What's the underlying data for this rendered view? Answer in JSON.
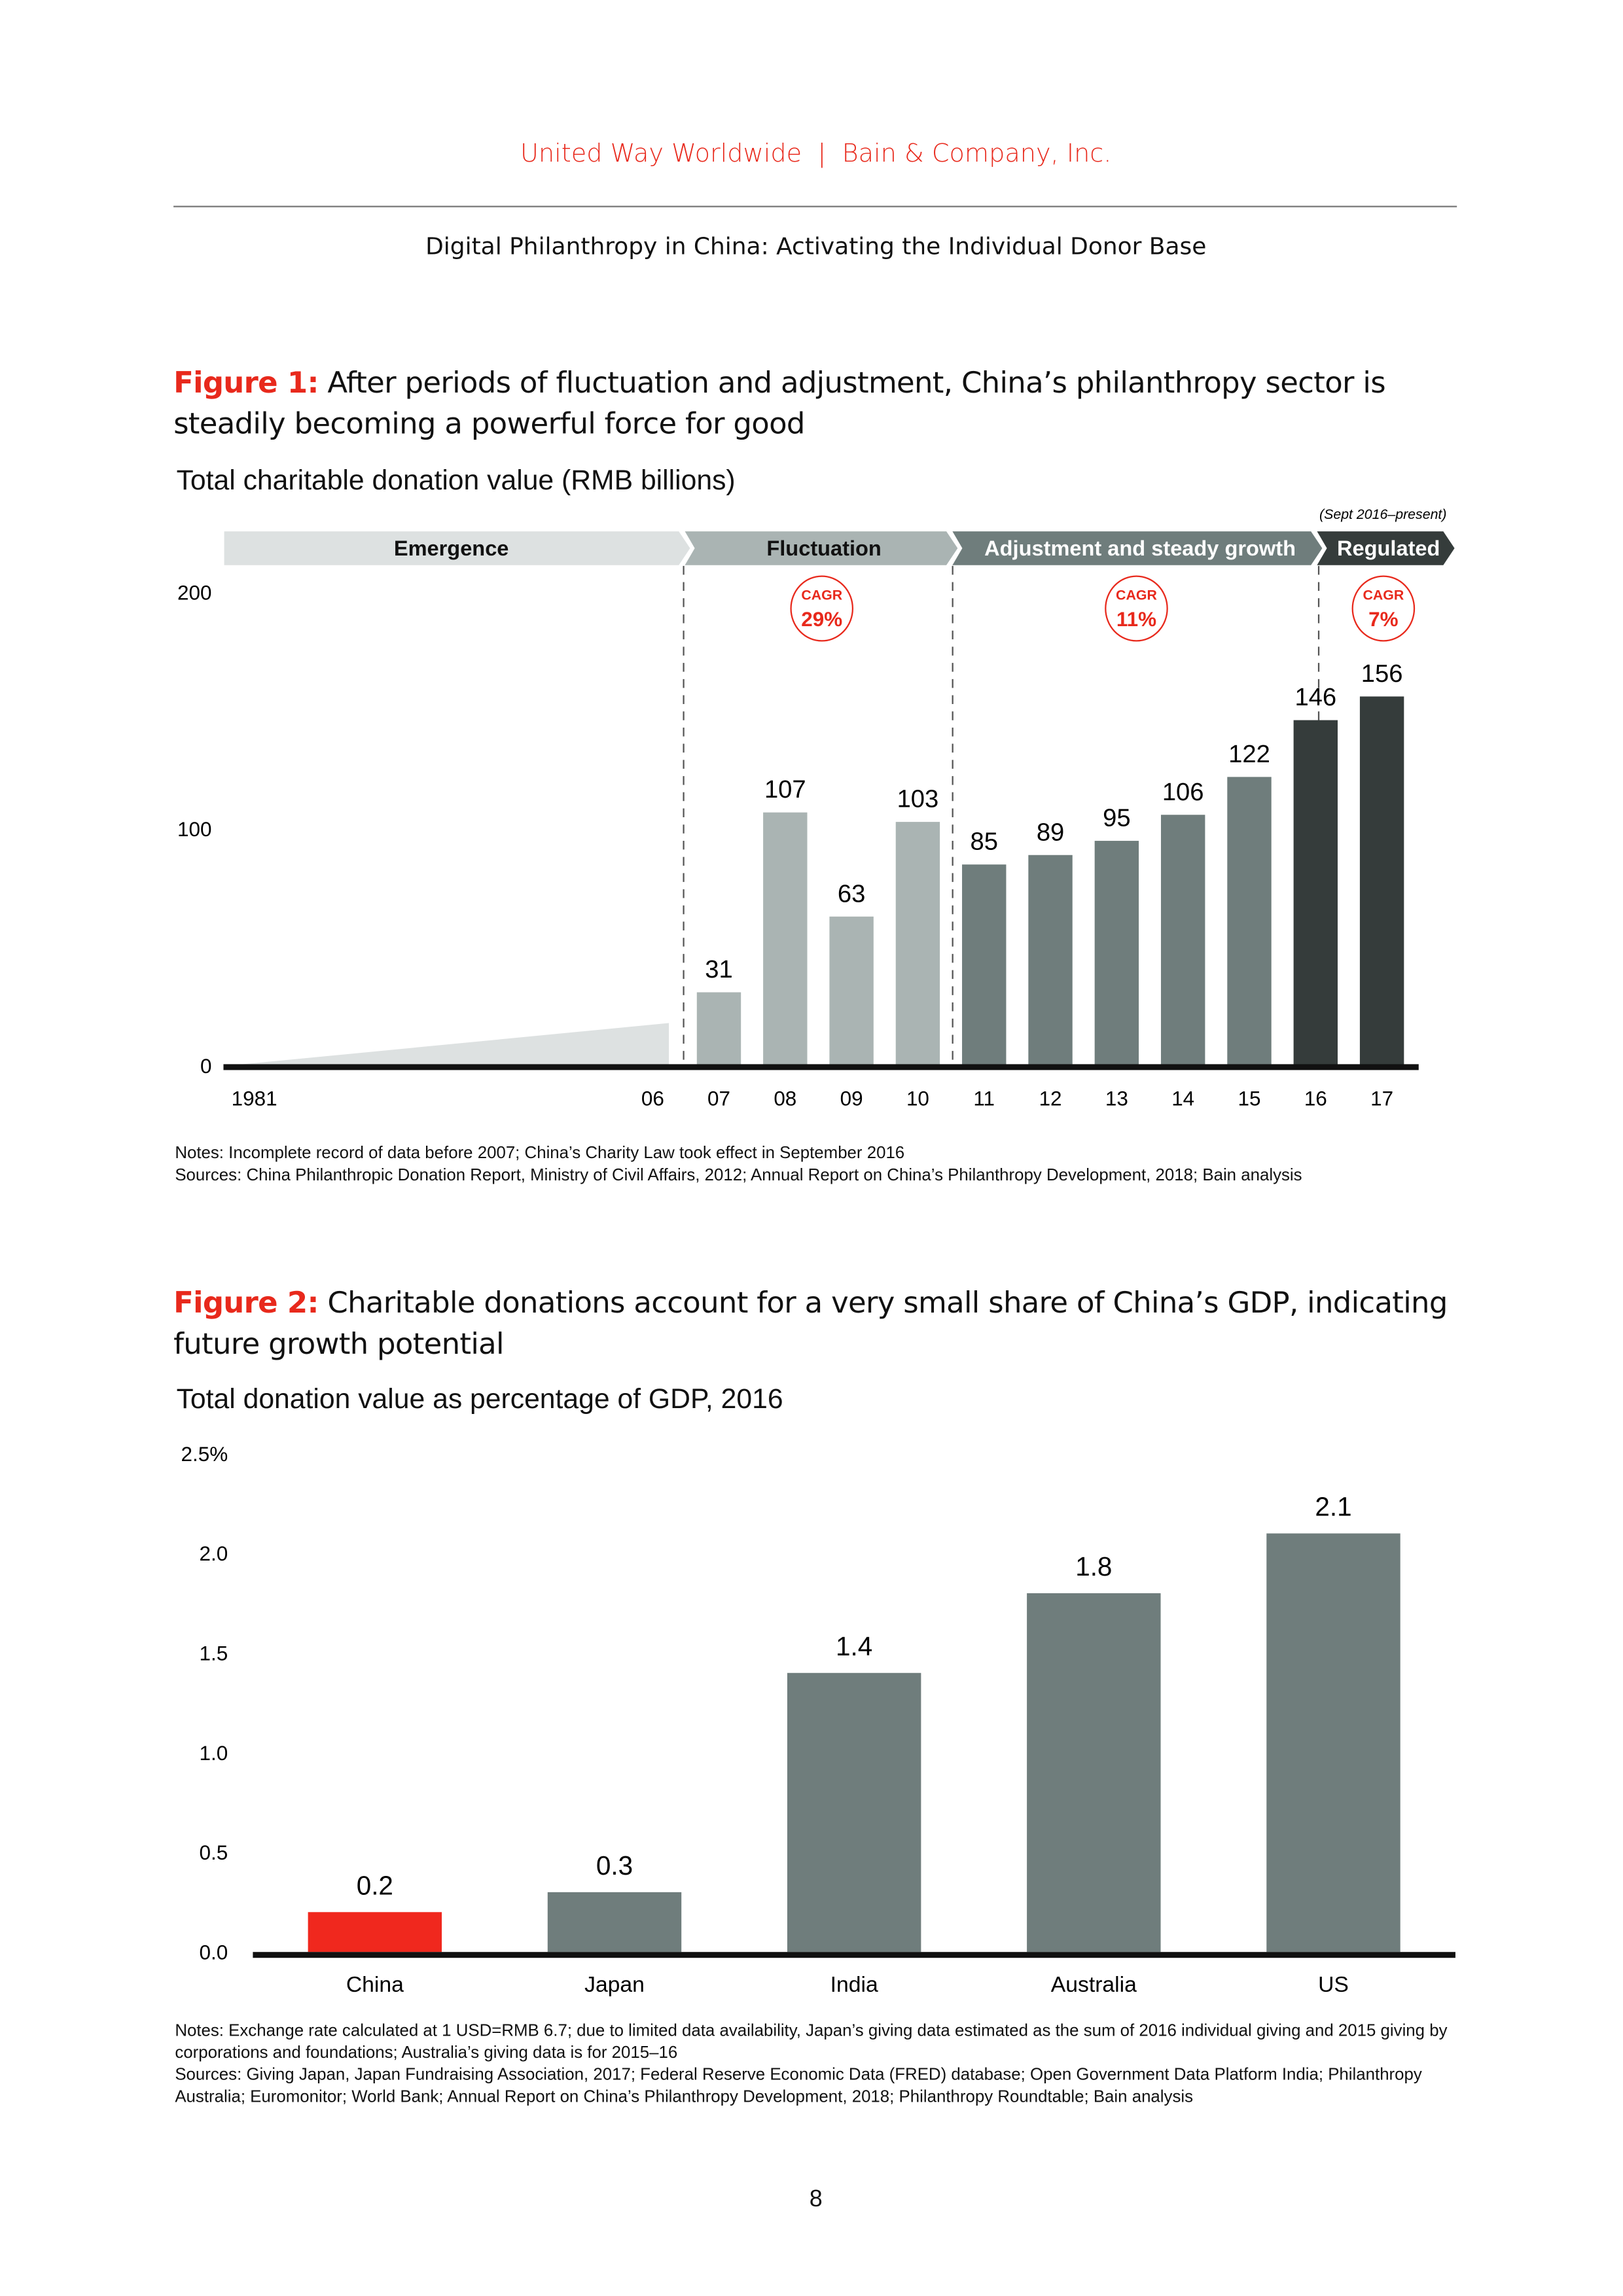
{
  "header": {
    "left": "United Way Worldwide",
    "separator": "|",
    "right": "Bain & Company, Inc."
  },
  "subtitle": "Digital Philanthropy in China: Activating the Individual Donor Base",
  "figure1": {
    "label": "Figure 1:",
    "title": "After periods of fluctuation and adjustment, China’s philanthropy sector is steadily becoming a powerful force for good",
    "notes": "Notes: Incomplete record of data before 2007; China’s Charity Law took effect in September 2016",
    "sources": "Sources: China Philanthropic Donation Report, Ministry of Civil Affairs, 2012; Annual Report on China’s Philanthropy Development, 2018; Bain analysis"
  },
  "figure2": {
    "label": "Figure 2:",
    "title": "Charitable donations account for a very small share of China’s GDP, indicating future growth potential",
    "notes": "Notes: Exchange rate calculated at 1 USD=RMB 6.7; due to limited data availability, Japan’s giving data estimated as the sum of 2016 individual giving and 2015 giving by corporations and foundations; Australia’s giving data is for 2015–16",
    "sources": "Sources: Giving Japan, Japan Fundraising Association, 2017; Federal Reserve Economic Data (FRED) database; Open Government Data Platform India; Philanthropy Australia; Euromonitor; World Bank; Annual Report on China’s Philanthropy Development, 2018; Philanthropy Roundtable; Bain analysis"
  },
  "page_number": "8",
  "chart_data": [
    {
      "type": "bar",
      "title": "Total charitable donation value (RMB billions)",
      "ylim": [
        0,
        200
      ],
      "yticks": [
        "0",
        "100",
        "200"
      ],
      "categories": [
        "07",
        "08",
        "09",
        "10",
        "11",
        "12",
        "13",
        "14",
        "15",
        "16",
        "17"
      ],
      "values": [
        31,
        107,
        63,
        103,
        85,
        89,
        95,
        106,
        122,
        146,
        156
      ],
      "pre_period": {
        "start_label": "1981",
        "end_label": "06",
        "note": "incomplete data, shown as rising wedge"
      },
      "phases": [
        {
          "name": "Emergence",
          "color": "#dde1e1",
          "text_color": "#111111",
          "start": "1981",
          "end": "06"
        },
        {
          "name": "Fluctuation",
          "color": "#aab4b3",
          "text_color": "#111111",
          "start": "07",
          "end": "10",
          "cagr": "29%"
        },
        {
          "name": "Adjustment and steady growth",
          "color": "#6f7d7c",
          "text_color": "#ffffff",
          "start": "11",
          "end": "15",
          "cagr": "11%"
        },
        {
          "name": "Regulated",
          "color": "#353c3b",
          "text_color": "#ffffff",
          "start": "16",
          "end": "17",
          "cagr": "7%",
          "note": "(Sept 2016–present)"
        }
      ],
      "cagr_label": "CAGR",
      "accent": "#e8291c"
    },
    {
      "type": "bar",
      "title": "Total donation value as percentage of GDP, 2016",
      "ylim": [
        0,
        2.5
      ],
      "yticks": [
        "0.0",
        "0.5",
        "1.0",
        "1.5",
        "2.0",
        "2.5%"
      ],
      "categories": [
        "China",
        "Japan",
        "India",
        "Australia",
        "US"
      ],
      "values": [
        0.2,
        0.3,
        1.4,
        1.8,
        2.1
      ],
      "colors": [
        "#f0281e",
        "#6f7d7c",
        "#6f7d7c",
        "#6f7d7c",
        "#6f7d7c"
      ]
    }
  ]
}
